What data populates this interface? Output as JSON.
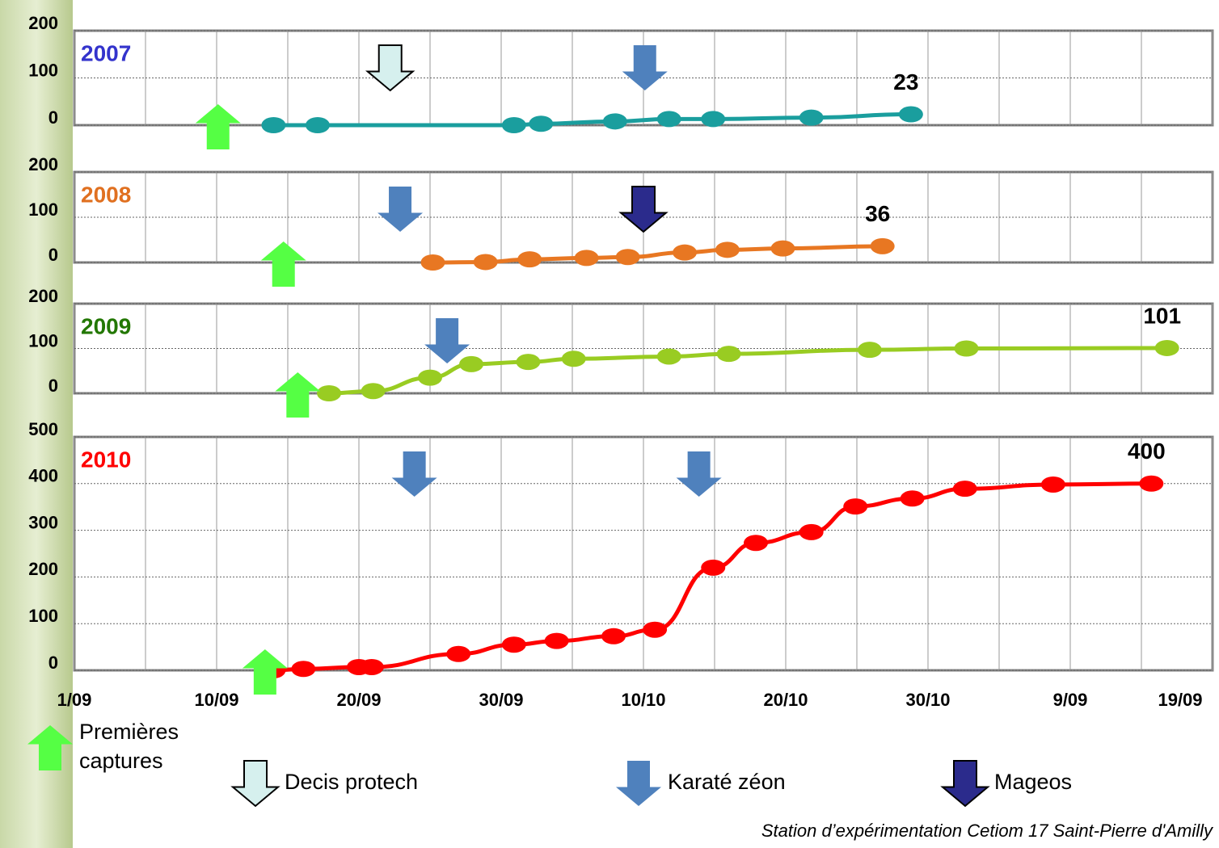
{
  "chart_data": [
    {
      "type": "line",
      "title": "2007",
      "title_color": "#3333cc",
      "xlim": [
        0,
        80
      ],
      "ylim": [
        0,
        200
      ],
      "yticks": [
        0,
        100,
        200
      ],
      "grid": true,
      "x": [
        14.0,
        17.1,
        30.9,
        32.8,
        38.0,
        41.8,
        44.9,
        51.8,
        58.8
      ],
      "series": [
        {
          "color": "#1a9e9e",
          "values": [
            0,
            0,
            0,
            3,
            8,
            13,
            13,
            16,
            23
          ]
        }
      ],
      "events": [
        {
          "x": 10.1,
          "kind": "Premières captures"
        },
        {
          "x": 22.2,
          "kind": "Decis protech"
        },
        {
          "x": 40.1,
          "kind": "Karaté zéon"
        }
      ]
    },
    {
      "type": "line",
      "title": "2008",
      "title_color": "#e07020",
      "xlim": [
        0,
        80
      ],
      "ylim": [
        0,
        200
      ],
      "yticks": [
        0,
        100,
        200
      ],
      "grid": true,
      "x": [
        25.2,
        28.9,
        32.0,
        36.0,
        38.9,
        42.9,
        45.9,
        49.8,
        56.8
      ],
      "series": [
        {
          "color": "#e87722",
          "values": [
            0,
            1,
            7,
            10,
            12,
            22,
            28,
            31,
            36
          ]
        }
      ],
      "events": [
        {
          "x": 14.7,
          "kind": "Premières captures"
        },
        {
          "x": 22.9,
          "kind": "Karaté zéon"
        },
        {
          "x": 40.0,
          "kind": "Mageos"
        }
      ]
    },
    {
      "type": "line",
      "title": "2009",
      "title_color": "#227700",
      "xlim": [
        0,
        80
      ],
      "ylim": [
        0,
        200
      ],
      "yticks": [
        0,
        100,
        200
      ],
      "grid": true,
      "x": [
        17.9,
        21.0,
        25.0,
        27.9,
        31.9,
        35.1,
        41.8,
        46.0,
        55.9,
        62.7,
        76.8
      ],
      "series": [
        {
          "color": "#99cc22",
          "values": [
            0,
            5,
            35,
            65,
            70,
            77,
            82,
            88,
            97,
            100,
            101
          ]
        }
      ],
      "events": [
        {
          "x": 15.7,
          "kind": "Premières captures"
        },
        {
          "x": 26.2,
          "kind": "Karaté zéon"
        }
      ]
    },
    {
      "type": "line",
      "title": "2010",
      "title_color": "#ff0000",
      "xlim": [
        0,
        80
      ],
      "ylim": [
        0,
        500
      ],
      "yticks": [
        0,
        100,
        200,
        300,
        400,
        500
      ],
      "grid": true,
      "xticks": [
        {
          "value": 0,
          "label": "1/09"
        },
        {
          "value": 10,
          "label": "10/09"
        },
        {
          "value": 20,
          "label": "20/09"
        },
        {
          "value": 30,
          "label": "30/09"
        },
        {
          "value": 40,
          "label": "10/10"
        },
        {
          "value": 50,
          "label": "20/10"
        },
        {
          "value": 60,
          "label": "30/10"
        },
        {
          "value": 70,
          "label": "9/09"
        },
        {
          "value": 80,
          "label": "19/09"
        }
      ],
      "x": [
        14.0,
        16.1,
        20.0,
        20.9,
        27.0,
        30.9,
        33.9,
        37.9,
        40.8,
        44.9,
        47.9,
        51.8,
        54.9,
        58.9,
        62.6,
        68.8,
        75.7
      ],
      "series": [
        {
          "color": "#ff0000",
          "values": [
            0,
            3,
            7,
            7,
            35,
            55,
            63,
            73,
            87,
            220,
            273,
            296,
            351,
            368,
            389,
            398,
            400
          ]
        }
      ],
      "events": [
        {
          "x": 13.4,
          "kind": "Premières captures"
        },
        {
          "x": 23.9,
          "kind": "Karaté zéon"
        },
        {
          "x": 43.9,
          "kind": "Karaté zéon"
        }
      ]
    }
  ],
  "legend": [
    "Premières captures",
    "Decis protech",
    "Karaté zéon",
    "Mageos"
  ],
  "source": "Station d’expérimentation Cetiom 17 Saint-Pierre d'Amilly"
}
